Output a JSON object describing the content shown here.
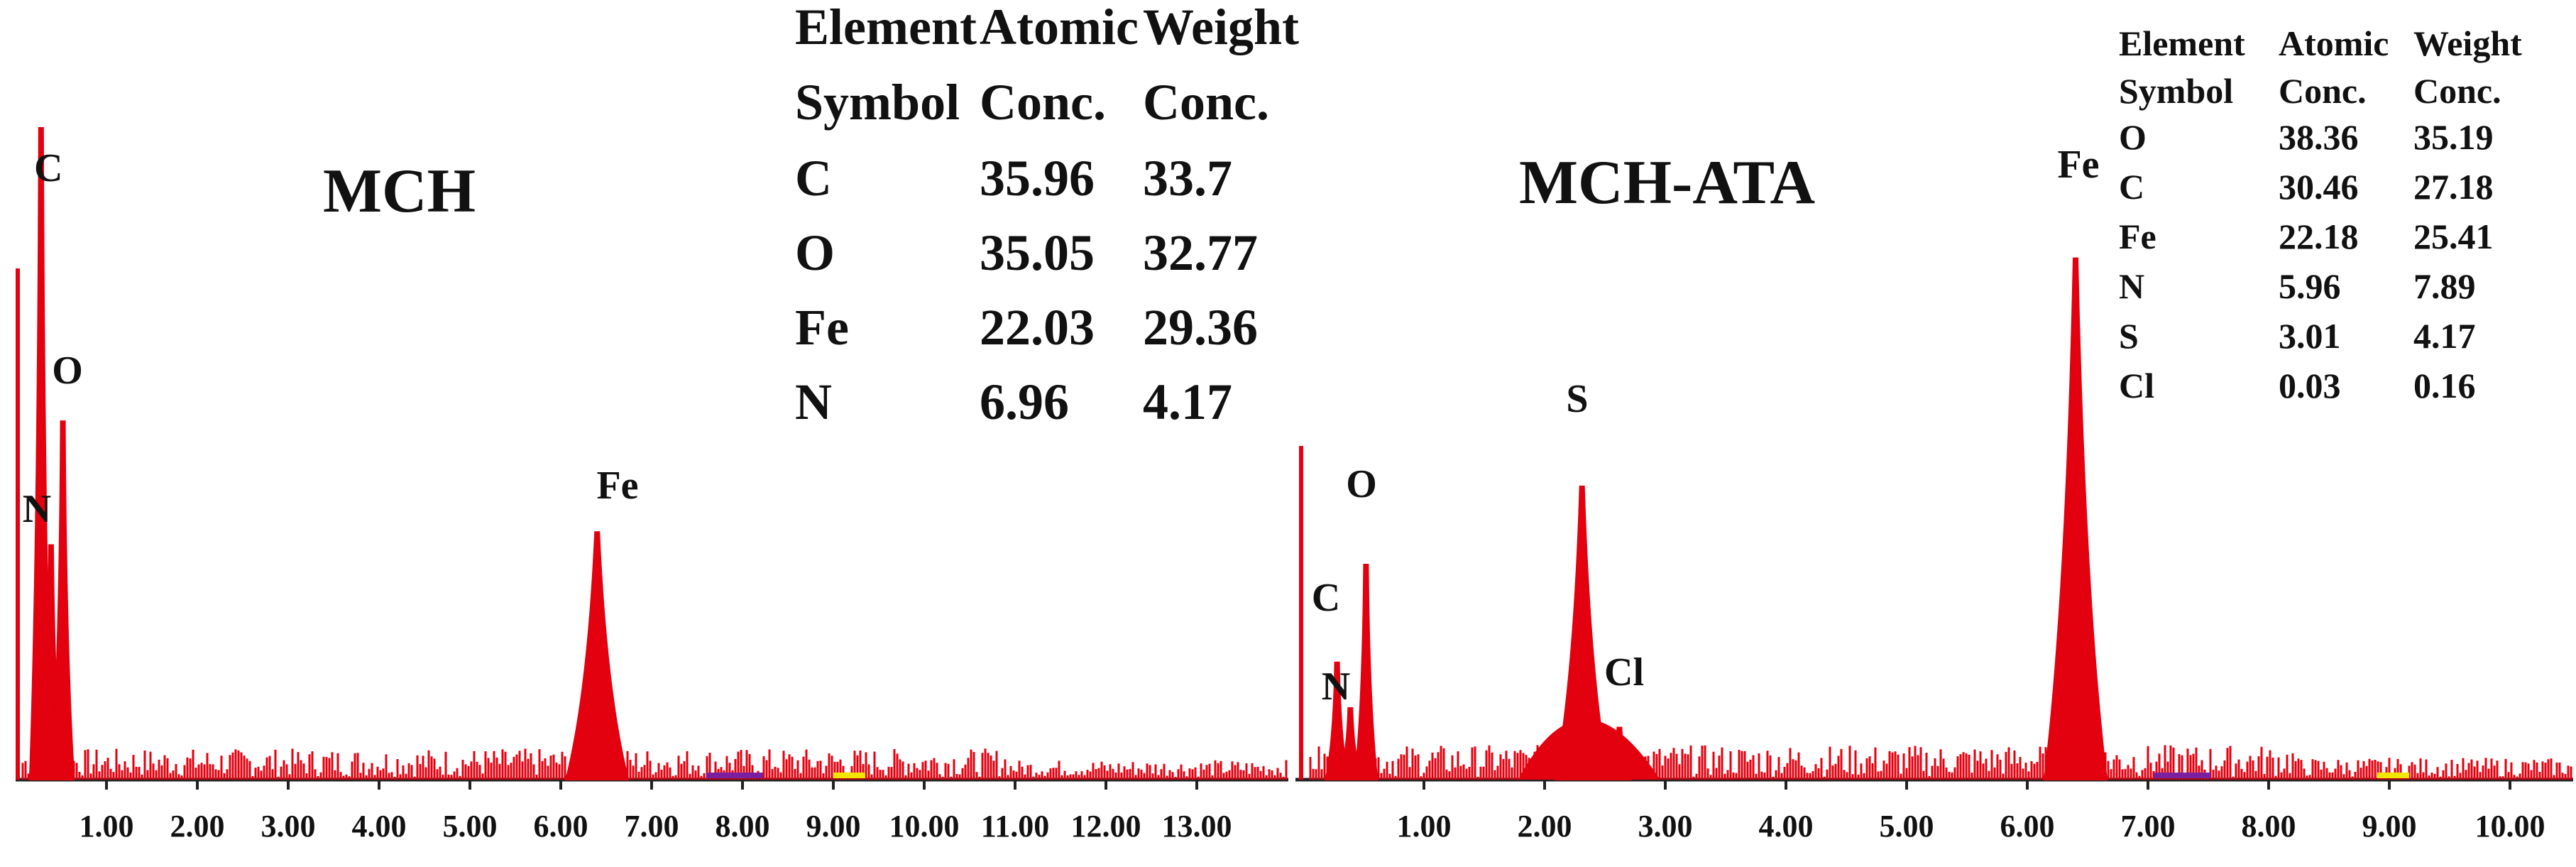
{
  "colors": {
    "spectrum": "#e3000f",
    "axis": "#222222",
    "purple_band": "#7a1fa0",
    "yellow_band": "#f2e600"
  },
  "chart_data": [
    {
      "type": "bar",
      "title": "MCH",
      "xlabel": "",
      "ylabel": "",
      "xlim": [
        0,
        13.5
      ],
      "x_ticks": [
        "1.00",
        "2.00",
        "3.00",
        "4.00",
        "5.00",
        "6.00",
        "7.00",
        "8.00",
        "9.00",
        "10.00",
        "11.00",
        "12.00",
        "13.00"
      ],
      "peaks": [
        {
          "label": "C",
          "x": 0.28,
          "height": 1.0
        },
        {
          "label": "N",
          "x": 0.39,
          "height": 0.36
        },
        {
          "label": "O",
          "x": 0.52,
          "height": 0.55
        },
        {
          "label": "Fe",
          "x": 6.4,
          "height": 0.38
        }
      ],
      "table": {
        "headers": [
          [
            "Element",
            "Symbol"
          ],
          [
            "Atomic",
            "Conc."
          ],
          [
            "Weight",
            "Conc."
          ]
        ],
        "rows": [
          [
            "C",
            "35.96",
            "33.7"
          ],
          [
            "O",
            "35.05",
            "32.77"
          ],
          [
            "Fe",
            "22.03",
            "29.36"
          ],
          [
            "N",
            "6.96",
            "4.17"
          ]
        ]
      }
    },
    {
      "type": "bar",
      "title": "MCH-ATA",
      "xlabel": "",
      "ylabel": "",
      "xlim": [
        0,
        10.4
      ],
      "x_ticks": [
        "1.00",
        "2.00",
        "3.00",
        "4.00",
        "5.00",
        "6.00",
        "7.00",
        "8.00",
        "9.00",
        "10.00"
      ],
      "peaks": [
        {
          "label": "C",
          "x": 0.28,
          "height": 0.18
        },
        {
          "label": "N",
          "x": 0.39,
          "height": 0.11
        },
        {
          "label": "O",
          "x": 0.52,
          "height": 0.33
        },
        {
          "label": "S",
          "x": 2.31,
          "height": 0.45
        },
        {
          "label": "Cl",
          "x": 2.62,
          "height": 0.08
        },
        {
          "label": "Fe",
          "x": 6.4,
          "height": 0.8
        }
      ],
      "table": {
        "headers": [
          [
            "Element",
            "Symbol"
          ],
          [
            "Atomic",
            "Conc."
          ],
          [
            "Weight",
            "Conc."
          ]
        ],
        "rows": [
          [
            "O",
            "38.36",
            "35.19"
          ],
          [
            "C",
            "30.46",
            "27.18"
          ],
          [
            "Fe",
            "22.18",
            "25.41"
          ],
          [
            "N",
            "5.96",
            "7.89"
          ],
          [
            "S",
            "3.01",
            "4.17"
          ],
          [
            "Cl",
            "0.03",
            "0.16"
          ]
        ]
      }
    }
  ]
}
